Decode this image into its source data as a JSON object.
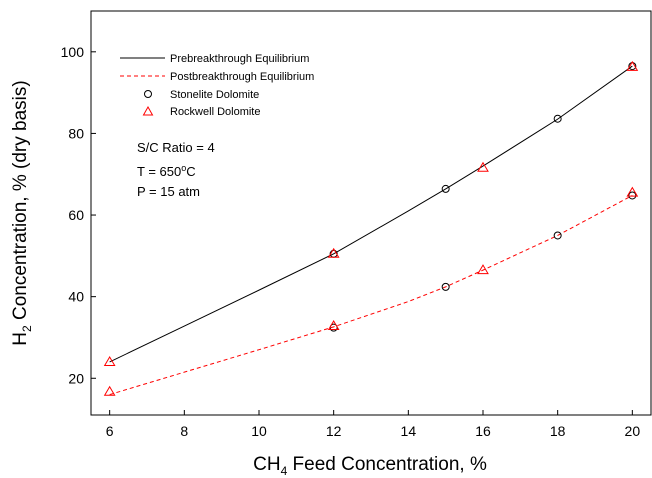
{
  "chart_data": {
    "type": "line",
    "title": "",
    "xlabel": {
      "prefix": "CH",
      "sub": "4",
      "suffix": " Feed Concentration, %"
    },
    "ylabel": {
      "prefix": "H",
      "sub": "2",
      "suffix": " Concentration, % (dry basis)"
    },
    "xlim": [
      5.5,
      20.5
    ],
    "ylim": [
      11,
      110
    ],
    "xticks": [
      6,
      8,
      10,
      12,
      14,
      16,
      18,
      20
    ],
    "yticks": [
      20,
      40,
      60,
      80,
      100
    ],
    "xtick_labels": [
      "6",
      "8",
      "10",
      "12",
      "14",
      "16",
      "18",
      "20"
    ],
    "ytick_labels": [
      "20",
      "40",
      "60",
      "80",
      "100"
    ],
    "grid": false,
    "legend_position": "top-left",
    "annotations": [
      {
        "text": "S/C Ratio = 4"
      },
      {
        "prefix": "T = 650",
        "sup": "o",
        "suffix": "C"
      },
      {
        "text": "P = 15 atm"
      }
    ],
    "series": [
      {
        "name": "Prebreakthrough Equilibrium",
        "kind": "line",
        "style": "solid",
        "color": "#000000",
        "x": [
          6,
          8,
          10,
          12,
          14,
          15,
          16,
          18,
          20
        ],
        "y": [
          24,
          32.8,
          41.6,
          50.5,
          61,
          66.4,
          72,
          83.5,
          96.5
        ]
      },
      {
        "name": "Postbreakthrough Equilibrium",
        "kind": "line",
        "style": "dashed",
        "color": "#ff0000",
        "x": [
          6,
          8,
          10,
          12,
          14,
          15,
          16,
          18,
          20
        ],
        "y": [
          16,
          21.5,
          27,
          32.6,
          38.8,
          42.4,
          46.5,
          55,
          64.8
        ]
      },
      {
        "name": "Stonelite Dolomite",
        "kind": "marker",
        "marker": "circle",
        "color": "#000000",
        "x": [
          12,
          12,
          15,
          15,
          18,
          18,
          20,
          20
        ],
        "y": [
          50.5,
          32.4,
          66.4,
          42.4,
          83.6,
          55,
          96.5,
          64.8
        ]
      },
      {
        "name": "Rockwell Dolomite",
        "kind": "marker",
        "marker": "triangle",
        "color": "#ff0000",
        "x": [
          6,
          6,
          12,
          12,
          16,
          16,
          20,
          20
        ],
        "y": [
          24,
          16.7,
          50.5,
          32.8,
          71.6,
          46.5,
          96.3,
          65.5
        ]
      }
    ]
  }
}
